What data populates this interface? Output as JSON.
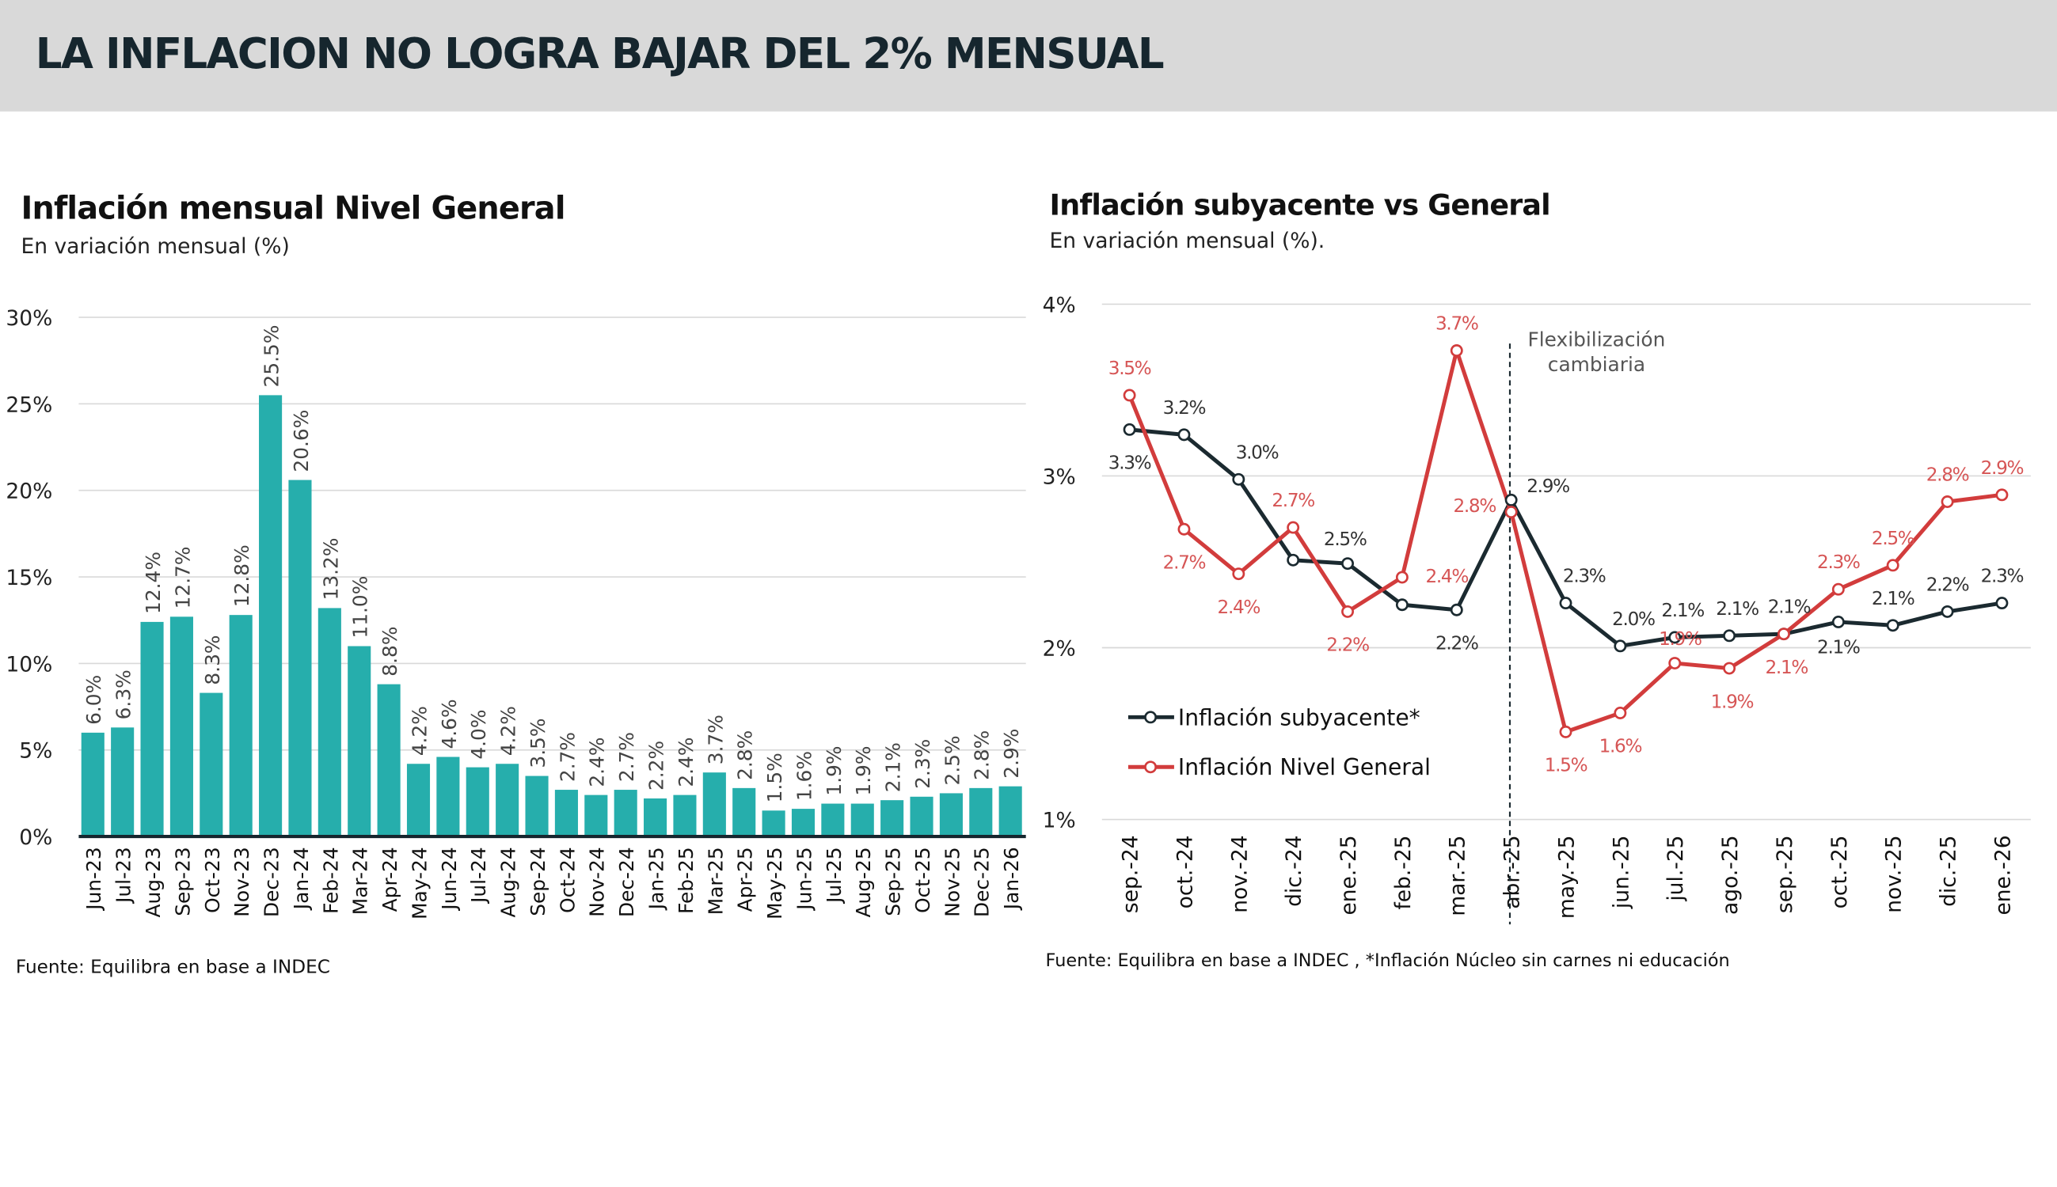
{
  "header": {
    "title": "LA INFLACION NO LOGRA BAJAR DEL 2% MENSUAL"
  },
  "colors": {
    "bar": "#26aeac",
    "core": "#1b2a30",
    "general": "#d23c3c",
    "grid": "#d9d9d9"
  },
  "chart_data": [
    {
      "type": "bar",
      "title": "Inflación mensual Nivel General",
      "subtitle": "En variación mensual (%)",
      "source": "Fuente: Equilibra en base a INDEC",
      "ylim": [
        0,
        30
      ],
      "yticks": [
        "0%",
        "5%",
        "10%",
        "15%",
        "20%",
        "25%",
        "30%"
      ],
      "grid": true,
      "categories": [
        "Jun-23",
        "Jul-23",
        "Aug-23",
        "Sep-23",
        "Oct-23",
        "Nov-23",
        "Dec-23",
        "Jan-24",
        "Feb-24",
        "Mar-24",
        "Apr-24",
        "May-24",
        "Jun-24",
        "Jul-24",
        "Aug-24",
        "Sep-24",
        "Oct-24",
        "Nov-24",
        "Dec-24",
        "Jan-25",
        "Feb-25",
        "Mar-25",
        "Apr-25",
        "May-25",
        "Jun-25",
        "Jul-25",
        "Aug-25",
        "Sep-25",
        "Oct-25",
        "Nov-25",
        "Dec-25",
        "Jan-26"
      ],
      "values": [
        6.0,
        6.3,
        12.4,
        12.7,
        8.3,
        12.8,
        25.5,
        20.6,
        13.2,
        11.0,
        8.8,
        4.2,
        4.6,
        4.0,
        4.2,
        3.5,
        2.7,
        2.4,
        2.7,
        2.2,
        2.4,
        3.7,
        2.8,
        1.5,
        1.6,
        1.9,
        1.9,
        2.1,
        2.3,
        2.5,
        2.8,
        2.9
      ],
      "labels": [
        "6.0%",
        "6.3%",
        "12.4%",
        "12.7%",
        "8.3%",
        "12.8%",
        "25.5%",
        "20.6%",
        "13.2%",
        "11.0%",
        "8.8%",
        "4.2%",
        "4.6%",
        "4.0%",
        "4.2%",
        "3.5%",
        "2.7%",
        "2.4%",
        "2.7%",
        "2.2%",
        "2.4%",
        "3.7%",
        "2.8%",
        "1.5%",
        "1.6%",
        "1.9%",
        "1.9%",
        "2.1%",
        "2.3%",
        "2.5%",
        "2.8%",
        "2.9%"
      ]
    },
    {
      "type": "line",
      "title": "Inflación subyacente vs General",
      "subtitle": "En variación mensual (%).",
      "source": "Fuente: Equilibra en base a INDEC ,  *Inflación Núcleo sin carnes ni educación",
      "ylim": [
        1,
        4
      ],
      "yticks": [
        "1%",
        "2%",
        "3%",
        "4%"
      ],
      "grid": true,
      "legend": "bottom-left",
      "annotation": {
        "at": "abr.-25",
        "line1": "Flexibilización",
        "line2": "cambiaria"
      },
      "categories": [
        "sep.-24",
        "oct.-24",
        "nov.-24",
        "dic.-24",
        "ene.-25",
        "feb.-25",
        "mar.-25",
        "abr.-25",
        "may.-25",
        "jun.-25",
        "jul.-25",
        "ago.-25",
        "sep.-25",
        "oct.-25",
        "nov.-25",
        "dic.-25",
        "ene.-26"
      ],
      "series": [
        {
          "name": "Inflación subyacente*",
          "values": [
            3.27,
            3.24,
            2.98,
            2.51,
            2.49,
            2.25,
            2.22,
            2.86,
            2.26,
            2.01,
            2.06,
            2.07,
            2.08,
            2.15,
            2.13,
            2.21,
            2.26
          ],
          "labels": [
            "3.3%",
            "3.2%",
            "3.0%",
            "",
            "2.5%",
            "",
            "2.2%",
            "2.9%",
            "2.3%",
            "2.0%",
            "2.1%",
            "2.1%",
            "2.1%",
            "2.1%",
            "2.1%",
            "2.2%",
            "2.3%"
          ]
        },
        {
          "name": "Inflación Nivel General",
          "values": [
            3.47,
            2.69,
            2.43,
            2.7,
            2.21,
            2.41,
            3.73,
            2.79,
            1.51,
            1.62,
            1.91,
            1.88,
            2.08,
            2.34,
            2.48,
            2.85,
            2.89
          ],
          "labels": [
            "3.5%",
            "2.7%",
            "2.4%",
            "2.7%",
            "2.2%",
            "2.4%",
            "3.7%",
            "2.8%",
            "1.5%",
            "1.6%",
            "1.9%",
            "1.9%",
            "2.1%",
            "2.3%",
            "2.5%",
            "2.8%",
            "2.9%"
          ]
        }
      ]
    }
  ]
}
